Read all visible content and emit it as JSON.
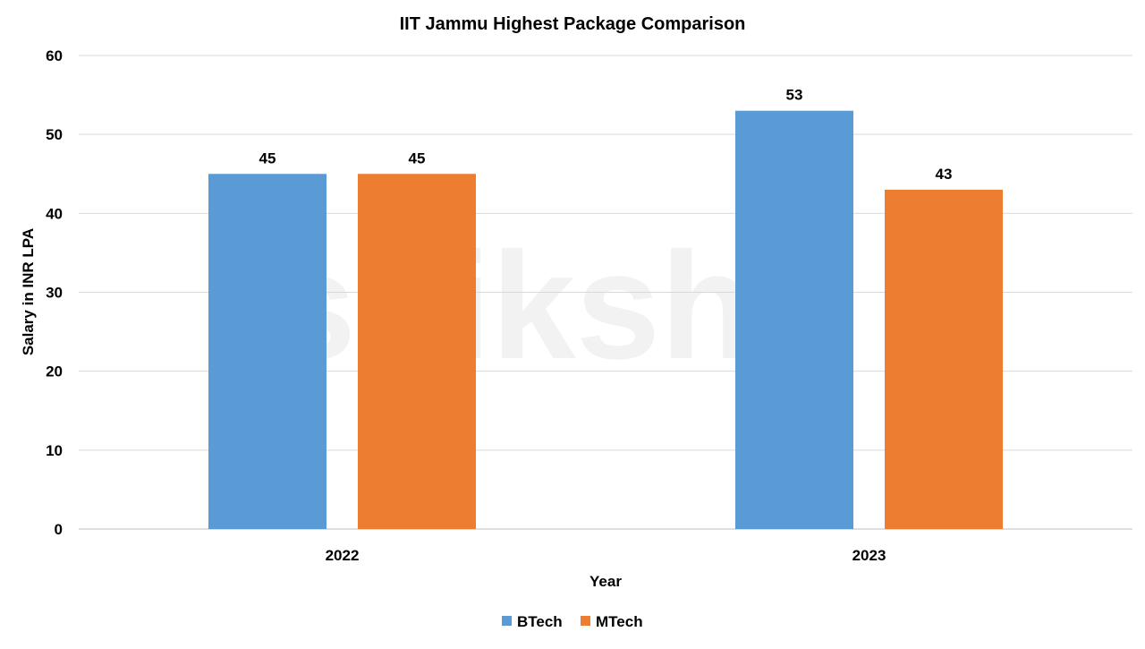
{
  "watermark": "shiksha",
  "chart_data": {
    "type": "bar",
    "title": "IIT Jammu Highest Package Comparison",
    "xlabel": "Year",
    "ylabel": "Salary in INR LPA",
    "categories": [
      "2022",
      "2023"
    ],
    "series": [
      {
        "name": "BTech",
        "values": [
          45,
          53
        ],
        "color": "#5B9BD5"
      },
      {
        "name": "MTech",
        "values": [
          45,
          43
        ],
        "color": "#ED7D31"
      }
    ],
    "ylim": [
      0,
      60
    ],
    "yticks": [
      0,
      10,
      20,
      30,
      40,
      50,
      60
    ],
    "grid": true,
    "data_labels": true,
    "legend_position": "bottom"
  }
}
